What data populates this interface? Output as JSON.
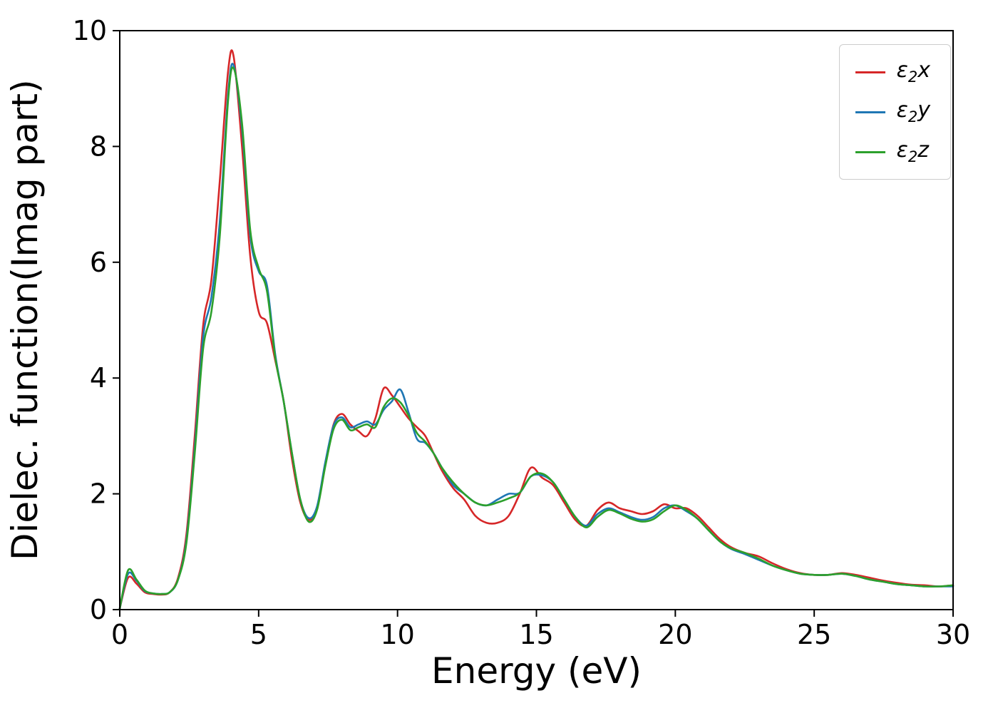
{
  "figure": {
    "background": "#ffffff",
    "axis_color": "#000000"
  },
  "chart_data": {
    "type": "line",
    "title": "",
    "xlabel": "Energy (eV)",
    "ylabel": "Dielec. function(Imag part)",
    "xlim": [
      0,
      30
    ],
    "ylim": [
      0,
      10
    ],
    "x_ticks": [
      0,
      5,
      10,
      15,
      20,
      25,
      30
    ],
    "y_ticks": [
      0,
      2,
      4,
      6,
      8,
      10
    ],
    "grid": false,
    "legend_position": "upper right",
    "x": [
      0,
      0.3,
      0.6,
      0.9,
      1.2,
      1.5,
      1.8,
      2.1,
      2.4,
      2.7,
      3.0,
      3.3,
      3.6,
      3.9,
      4.1,
      4.4,
      4.7,
      5.0,
      5.3,
      5.6,
      5.9,
      6.2,
      6.5,
      6.8,
      7.1,
      7.4,
      7.7,
      8.0,
      8.3,
      8.6,
      8.9,
      9.2,
      9.5,
      9.8,
      10.1,
      10.4,
      10.7,
      11.0,
      11.3,
      11.6,
      12.0,
      12.4,
      12.8,
      13.2,
      13.6,
      14.0,
      14.4,
      14.8,
      15.2,
      15.6,
      16.0,
      16.4,
      16.8,
      17.2,
      17.6,
      18.0,
      18.4,
      18.8,
      19.2,
      19.6,
      20.0,
      20.4,
      20.8,
      21.2,
      21.6,
      22.0,
      22.5,
      23.0,
      23.5,
      24.0,
      24.5,
      25.0,
      25.5,
      26.0,
      26.5,
      27.0,
      27.5,
      28.0,
      28.5,
      29.0,
      29.5,
      30.0
    ],
    "series": [
      {
        "name": "eps2x",
        "label_symbol": "ε",
        "label_sub": "2",
        "label_var": "x",
        "color": "#d62728",
        "values": [
          0.02,
          0.55,
          0.45,
          0.3,
          0.27,
          0.26,
          0.3,
          0.55,
          1.3,
          3.0,
          4.9,
          5.7,
          7.4,
          9.3,
          9.55,
          8.0,
          6.1,
          5.15,
          4.95,
          4.3,
          3.6,
          2.6,
          1.85,
          1.55,
          1.75,
          2.5,
          3.2,
          3.38,
          3.2,
          3.08,
          3.0,
          3.3,
          3.82,
          3.7,
          3.5,
          3.3,
          3.15,
          3.0,
          2.7,
          2.4,
          2.1,
          1.9,
          1.62,
          1.5,
          1.5,
          1.62,
          2.0,
          2.45,
          2.28,
          2.15,
          1.85,
          1.55,
          1.45,
          1.72,
          1.85,
          1.75,
          1.7,
          1.65,
          1.7,
          1.82,
          1.75,
          1.75,
          1.62,
          1.42,
          1.22,
          1.08,
          0.98,
          0.92,
          0.8,
          0.7,
          0.63,
          0.6,
          0.6,
          0.63,
          0.6,
          0.55,
          0.5,
          0.46,
          0.43,
          0.42,
          0.4,
          0.42
        ]
      },
      {
        "name": "eps2y",
        "label_symbol": "ε",
        "label_sub": "2",
        "label_var": "y",
        "color": "#1f77b4",
        "values": [
          0.02,
          0.62,
          0.5,
          0.32,
          0.28,
          0.27,
          0.3,
          0.52,
          1.2,
          2.8,
          4.7,
          5.4,
          6.7,
          8.9,
          9.4,
          8.3,
          6.45,
          5.85,
          5.6,
          4.4,
          3.6,
          2.7,
          1.9,
          1.58,
          1.78,
          2.55,
          3.18,
          3.32,
          3.15,
          3.2,
          3.25,
          3.2,
          3.45,
          3.6,
          3.8,
          3.4,
          2.95,
          2.88,
          2.7,
          2.45,
          2.15,
          2.0,
          1.85,
          1.8,
          1.9,
          2.0,
          2.02,
          2.3,
          2.32,
          2.2,
          1.9,
          1.6,
          1.45,
          1.65,
          1.75,
          1.68,
          1.6,
          1.55,
          1.6,
          1.75,
          1.8,
          1.7,
          1.57,
          1.37,
          1.18,
          1.05,
          0.96,
          0.86,
          0.76,
          0.68,
          0.62,
          0.6,
          0.6,
          0.62,
          0.58,
          0.52,
          0.48,
          0.44,
          0.42,
          0.4,
          0.4,
          0.4
        ]
      },
      {
        "name": "eps2z",
        "label_symbol": "ε",
        "label_sub": "2",
        "label_var": "z",
        "color": "#2ca02c",
        "values": [
          0.02,
          0.68,
          0.52,
          0.33,
          0.28,
          0.27,
          0.3,
          0.52,
          1.15,
          2.7,
          4.5,
          5.15,
          6.45,
          8.8,
          9.35,
          8.4,
          6.55,
          5.9,
          5.5,
          4.35,
          3.6,
          2.7,
          1.9,
          1.52,
          1.72,
          2.48,
          3.12,
          3.28,
          3.1,
          3.15,
          3.2,
          3.15,
          3.5,
          3.65,
          3.58,
          3.35,
          3.05,
          2.9,
          2.7,
          2.45,
          2.2,
          2.0,
          1.85,
          1.8,
          1.85,
          1.92,
          2.02,
          2.3,
          2.35,
          2.2,
          1.9,
          1.6,
          1.42,
          1.6,
          1.72,
          1.66,
          1.57,
          1.52,
          1.56,
          1.7,
          1.8,
          1.72,
          1.57,
          1.37,
          1.18,
          1.06,
          0.98,
          0.88,
          0.76,
          0.68,
          0.62,
          0.6,
          0.6,
          0.62,
          0.58,
          0.52,
          0.48,
          0.44,
          0.42,
          0.4,
          0.4,
          0.42
        ]
      }
    ]
  }
}
